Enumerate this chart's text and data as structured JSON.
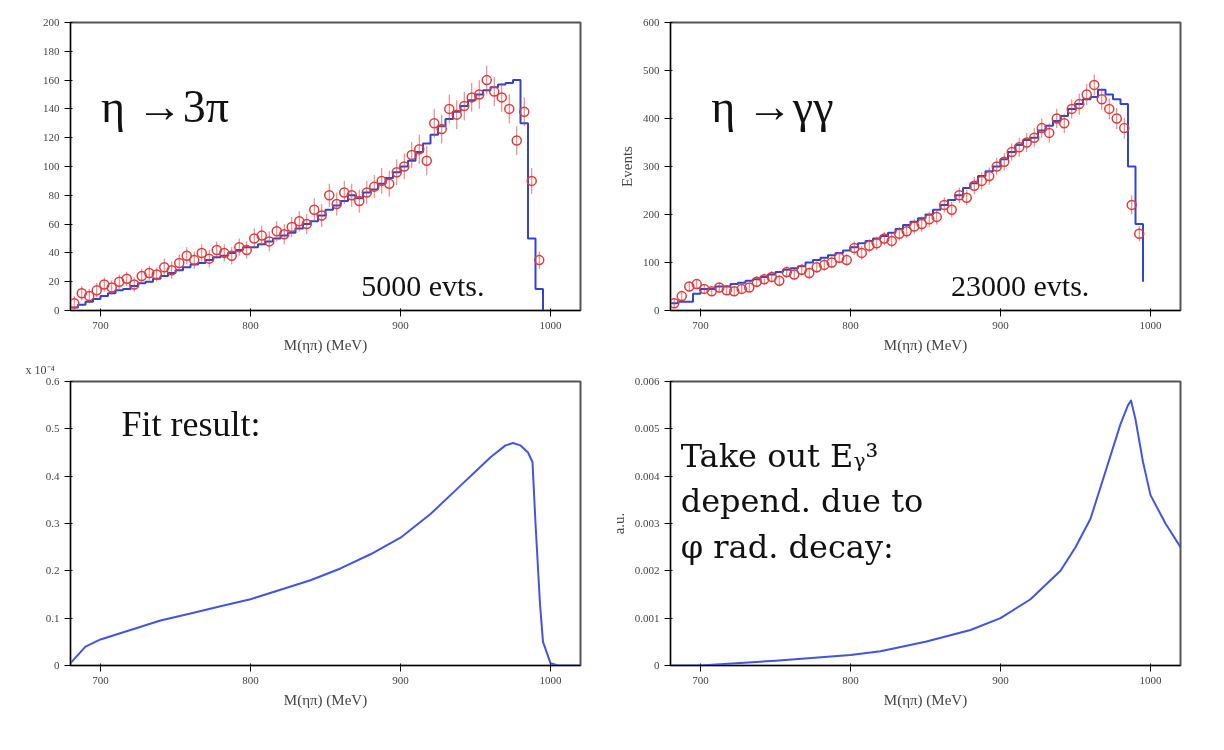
{
  "chart_data": [
    {
      "type": "step",
      "xlabel": "M(ηπ) (MeV)",
      "xlim": [
        680,
        1020
      ],
      "xticks": [
        700,
        800,
        900,
        1000
      ],
      "ylim": [
        0,
        200
      ],
      "yticks": [
        0,
        20,
        40,
        60,
        80,
        100,
        120,
        140,
        160,
        180,
        200
      ],
      "grid": false,
      "annotations": [
        "η →3π",
        "5000 evts."
      ],
      "series": [
        {
          "type": "step",
          "color": "#3344cc",
          "x": [
            680,
            685,
            690,
            695,
            700,
            705,
            710,
            715,
            720,
            725,
            730,
            735,
            740,
            745,
            750,
            755,
            760,
            765,
            770,
            775,
            780,
            785,
            790,
            795,
            800,
            805,
            810,
            815,
            820,
            825,
            830,
            835,
            840,
            845,
            850,
            855,
            860,
            865,
            870,
            875,
            880,
            885,
            890,
            895,
            900,
            905,
            910,
            915,
            920,
            925,
            930,
            935,
            940,
            945,
            950,
            955,
            960,
            965,
            970,
            975,
            980,
            985,
            990,
            995
          ],
          "values": [
            2,
            4,
            6,
            8,
            10,
            12,
            14,
            15,
            17,
            19,
            20,
            22,
            24,
            26,
            28,
            30,
            32,
            33,
            35,
            37,
            38,
            40,
            42,
            44,
            44,
            46,
            48,
            50,
            52,
            54,
            57,
            60,
            62,
            66,
            70,
            73,
            76,
            80,
            78,
            82,
            84,
            88,
            92,
            96,
            100,
            104,
            110,
            116,
            122,
            128,
            133,
            138,
            142,
            146,
            150,
            153,
            155,
            157,
            158,
            160,
            130,
            50,
            15,
            0
          ]
        },
        {
          "type": "scatter",
          "marker": "circle",
          "color": "#e03a3a",
          "x": [
            682.5,
            687.5,
            692.5,
            697.5,
            702.5,
            707.5,
            712.5,
            717.5,
            722.5,
            727.5,
            732.5,
            737.5,
            742.5,
            747.5,
            752.5,
            757.5,
            762.5,
            767.5,
            772.5,
            777.5,
            782.5,
            787.5,
            792.5,
            797.5,
            802.5,
            807.5,
            812.5,
            817.5,
            822.5,
            827.5,
            832.5,
            837.5,
            842.5,
            847.5,
            852.5,
            857.5,
            862.5,
            867.5,
            872.5,
            877.5,
            882.5,
            887.5,
            892.5,
            897.5,
            902.5,
            907.5,
            912.5,
            917.5,
            922.5,
            927.5,
            932.5,
            937.5,
            942.5,
            947.5,
            952.5,
            957.5,
            962.5,
            967.5,
            972.5,
            977.5,
            982.5,
            987.5,
            992.5
          ],
          "values": [
            5,
            12,
            10,
            14,
            18,
            16,
            20,
            22,
            18,
            24,
            26,
            25,
            30,
            28,
            33,
            38,
            35,
            40,
            36,
            42,
            40,
            38,
            44,
            42,
            50,
            52,
            48,
            55,
            53,
            58,
            62,
            60,
            70,
            66,
            80,
            74,
            82,
            80,
            76,
            82,
            86,
            90,
            88,
            96,
            100,
            108,
            112,
            104,
            130,
            126,
            140,
            136,
            142,
            148,
            150,
            160,
            152,
            148,
            140,
            118,
            138,
            90,
            35
          ],
          "errors": [
            5,
            5,
            5,
            5,
            5,
            5,
            5,
            5,
            5,
            5,
            5,
            5,
            6,
            6,
            6,
            6,
            6,
            6,
            6,
            6,
            6,
            6,
            6,
            6,
            7,
            7,
            7,
            7,
            7,
            7,
            7,
            7,
            8,
            8,
            8,
            8,
            8,
            8,
            8,
            8,
            8,
            9,
            9,
            9,
            9,
            9,
            10,
            10,
            10,
            10,
            10,
            10,
            10,
            10,
            10,
            10,
            10,
            10,
            10,
            10,
            10,
            9,
            6
          ]
        }
      ]
    },
    {
      "type": "step",
      "xlabel": "M(ηπ) (MeV)",
      "ylabel": "Events",
      "xlim": [
        680,
        1020
      ],
      "xticks": [
        700,
        800,
        900,
        1000
      ],
      "ylim": [
        0,
        600
      ],
      "yticks": [
        0,
        100,
        200,
        300,
        400,
        500,
        600
      ],
      "grid": false,
      "annotations": [
        "η →γγ",
        "23000 evts."
      ],
      "series": [
        {
          "type": "step",
          "color": "#3344cc",
          "x": [
            680,
            685,
            690,
            695,
            700,
            705,
            710,
            715,
            720,
            725,
            730,
            735,
            740,
            745,
            750,
            755,
            760,
            765,
            770,
            775,
            780,
            785,
            790,
            795,
            800,
            805,
            810,
            815,
            820,
            825,
            830,
            835,
            840,
            845,
            850,
            855,
            860,
            865,
            870,
            875,
            880,
            885,
            890,
            895,
            900,
            905,
            910,
            915,
            920,
            925,
            930,
            935,
            940,
            945,
            950,
            955,
            960,
            965,
            970,
            975,
            980,
            985,
            990,
            995
          ],
          "values": [
            15,
            18,
            18,
            35,
            45,
            45,
            50,
            50,
            55,
            58,
            62,
            65,
            70,
            75,
            80,
            85,
            88,
            92,
            100,
            105,
            110,
            115,
            120,
            125,
            132,
            140,
            145,
            150,
            155,
            162,
            170,
            178,
            185,
            192,
            200,
            210,
            220,
            230,
            240,
            255,
            265,
            280,
            290,
            300,
            315,
            330,
            345,
            355,
            360,
            375,
            385,
            395,
            405,
            420,
            430,
            440,
            445,
            460,
            450,
            440,
            430,
            300,
            180,
            60
          ]
        },
        {
          "type": "scatter",
          "marker": "circle",
          "color": "#e03a3a",
          "x": [
            682.5,
            687.5,
            692.5,
            697.5,
            702.5,
            707.5,
            712.5,
            717.5,
            722.5,
            727.5,
            732.5,
            737.5,
            742.5,
            747.5,
            752.5,
            757.5,
            762.5,
            767.5,
            772.5,
            777.5,
            782.5,
            787.5,
            792.5,
            797.5,
            802.5,
            807.5,
            812.5,
            817.5,
            822.5,
            827.5,
            832.5,
            837.5,
            842.5,
            847.5,
            852.5,
            857.5,
            862.5,
            867.5,
            872.5,
            877.5,
            882.5,
            887.5,
            892.5,
            897.5,
            902.5,
            907.5,
            912.5,
            917.5,
            922.5,
            927.5,
            932.5,
            937.5,
            942.5,
            947.5,
            952.5,
            957.5,
            962.5,
            967.5,
            972.5,
            977.5,
            982.5,
            987.5,
            992.5
          ],
          "values": [
            15,
            30,
            50,
            55,
            45,
            40,
            48,
            42,
            40,
            45,
            48,
            60,
            65,
            70,
            62,
            80,
            75,
            85,
            78,
            90,
            95,
            100,
            110,
            105,
            130,
            120,
            135,
            140,
            150,
            145,
            160,
            165,
            175,
            180,
            190,
            195,
            220,
            210,
            240,
            235,
            260,
            270,
            280,
            300,
            310,
            330,
            340,
            350,
            360,
            380,
            370,
            400,
            390,
            420,
            430,
            450,
            470,
            440,
            420,
            400,
            380,
            220,
            160
          ],
          "errors": [
            10,
            10,
            10,
            10,
            10,
            10,
            10,
            10,
            10,
            10,
            10,
            12,
            12,
            12,
            12,
            12,
            12,
            12,
            12,
            12,
            12,
            12,
            12,
            12,
            14,
            14,
            14,
            14,
            14,
            14,
            14,
            14,
            16,
            16,
            16,
            16,
            16,
            16,
            16,
            16,
            18,
            18,
            18,
            18,
            18,
            18,
            20,
            20,
            20,
            20,
            20,
            20,
            20,
            20,
            22,
            22,
            22,
            22,
            22,
            22,
            22,
            20,
            16
          ]
        }
      ]
    },
    {
      "type": "line",
      "xlabel": "M(ηπ) (MeV)",
      "xlim": [
        680,
        1020
      ],
      "xticks": [
        700,
        800,
        900,
        1000
      ],
      "ylim": [
        0,
        0.6
      ],
      "yticks": [
        0,
        0.1,
        0.2,
        0.3,
        0.4,
        0.5,
        0.6
      ],
      "grid": false,
      "line_style": "solid",
      "annotations": [
        "x 10⁻⁴",
        "Fit result:"
      ],
      "series": [
        {
          "color": "#4455dd",
          "x": [
            680,
            690,
            700,
            720,
            740,
            760,
            780,
            800,
            820,
            840,
            860,
            880,
            900,
            920,
            940,
            950,
            960,
            970,
            975,
            980,
            985,
            988,
            990,
            993,
            995,
            1000,
            1005,
            1020
          ],
          "values": [
            0.005,
            0.04,
            0.055,
            0.075,
            0.095,
            0.11,
            0.125,
            0.14,
            0.16,
            0.18,
            0.205,
            0.235,
            0.27,
            0.32,
            0.38,
            0.41,
            0.44,
            0.465,
            0.47,
            0.465,
            0.45,
            0.43,
            0.3,
            0.13,
            0.05,
            0.005,
            0,
            0
          ]
        }
      ]
    },
    {
      "type": "line",
      "xlabel": "M(ηπ) (MeV)",
      "ylabel": "a.u.",
      "xlim": [
        680,
        1020
      ],
      "xticks": [
        700,
        800,
        900,
        1000
      ],
      "ylim": [
        0,
        0.006
      ],
      "yticks": [
        0,
        0.001,
        0.002,
        0.003,
        0.004,
        0.005,
        0.006
      ],
      "grid": false,
      "line_style": "solid",
      "annotations": [
        "Take out Eᵧ³\ndepend. due to\nφ rad. decay:"
      ],
      "series": [
        {
          "color": "#4455dd",
          "x": [
            680,
            700,
            750,
            800,
            820,
            850,
            880,
            900,
            920,
            940,
            950,
            960,
            970,
            980,
            985,
            987,
            990,
            995,
            1000,
            1010,
            1020
          ],
          "values": [
            0,
            0,
            0.0001,
            0.00022,
            0.0003,
            0.0005,
            0.00075,
            0.001,
            0.0014,
            0.002,
            0.0025,
            0.0031,
            0.0041,
            0.0051,
            0.0055,
            0.0056,
            0.0052,
            0.0043,
            0.0036,
            0.003,
            0.0025
          ]
        }
      ]
    }
  ]
}
